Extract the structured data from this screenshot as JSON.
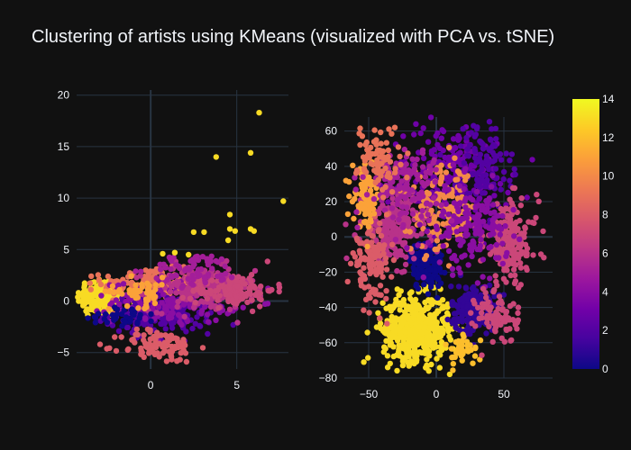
{
  "chart_data": {
    "type": "scatter",
    "title": "Clustering of artists using KMeans (visualized with PCA vs. tSNE)",
    "color": {
      "title": "",
      "range": [
        0,
        14
      ],
      "ticks": [
        "0",
        "2",
        "4",
        "6",
        "8",
        "10",
        "12",
        "14"
      ],
      "scale": [
        "#0d0887",
        "#46039f",
        "#7201a8",
        "#9c179e",
        "#bd3786",
        "#d8576b",
        "#ed7953",
        "#fb9f3a",
        "#fdca26",
        "#f0f921"
      ],
      "position": "right"
    },
    "panels": [
      {
        "name": "pca",
        "xlim": [
          -4.3,
          8.0
        ],
        "ylim": [
          -6.6,
          20.5
        ],
        "xticks": [
          0,
          5
        ],
        "xtick_labels": [
          "0",
          "5"
        ],
        "yticks": [
          -5,
          0,
          5,
          10,
          15,
          20
        ],
        "ytick_labels": [
          "−5",
          "0",
          "5",
          "10",
          "15",
          "20"
        ],
        "zeroline_x": 0,
        "zeroline_y": 0,
        "grid": true,
        "clusters": [
          {
            "c": 13,
            "cx": -2.9,
            "cy": 0.4,
            "sx": 0.7,
            "sy": 1.0,
            "n": 170
          },
          {
            "c": 9,
            "cx": 0.0,
            "cy": 1.7,
            "sx": 1.4,
            "sy": 0.7,
            "n": 150
          },
          {
            "c": 2,
            "cx": 0.6,
            "cy": -1.3,
            "sx": 1.5,
            "sy": 0.9,
            "n": 200
          },
          {
            "c": 4,
            "cx": 1.4,
            "cy": -0.1,
            "sx": 1.8,
            "sy": 1.0,
            "n": 150
          },
          {
            "c": 6,
            "cx": 3.0,
            "cy": 1.2,
            "sx": 1.5,
            "sy": 1.1,
            "n": 170
          },
          {
            "c": 7,
            "cx": 4.8,
            "cy": 1.1,
            "sx": 1.2,
            "sy": 0.8,
            "n": 120
          },
          {
            "c": 8,
            "cx": 0.5,
            "cy": -4.4,
            "sx": 1.1,
            "sy": 0.8,
            "n": 100
          },
          {
            "c": 5,
            "cx": 2.6,
            "cy": 3.0,
            "sx": 1.3,
            "sy": 0.8,
            "n": 70
          },
          {
            "c": 0,
            "cx": -1.6,
            "cy": -1.4,
            "sx": 1.0,
            "sy": 0.5,
            "n": 35
          },
          {
            "c": 11,
            "cx": -0.6,
            "cy": 0.9,
            "sx": 0.9,
            "sy": 0.7,
            "n": 50
          }
        ],
        "outliers": [
          [
            6.3,
            18.3
          ],
          [
            3.8,
            14.0
          ],
          [
            5.8,
            14.4
          ],
          [
            7.7,
            9.7
          ],
          [
            4.6,
            8.4
          ],
          [
            4.6,
            7.0
          ],
          [
            4.9,
            6.8
          ],
          [
            5.8,
            7.0
          ],
          [
            6.0,
            6.8
          ],
          [
            2.5,
            6.7
          ],
          [
            3.1,
            6.7
          ],
          [
            4.5,
            5.9
          ],
          [
            2.2,
            4.5
          ],
          [
            0.7,
            4.6
          ],
          [
            1.4,
            4.7
          ]
        ]
      },
      {
        "name": "tsne",
        "xlim": [
          -68,
          86
        ],
        "ylim": [
          -80,
          68
        ],
        "xticks": [
          -50,
          0,
          50
        ],
        "xtick_labels": [
          "−50",
          "0",
          "50"
        ],
        "yticks": [
          -80,
          -60,
          -40,
          -20,
          0,
          20,
          40,
          60
        ],
        "ytick_labels": [
          "−80",
          "−60",
          "−40",
          "−20",
          "0",
          "20",
          "40",
          "60"
        ],
        "zeroline_x": 0,
        "zeroline_y": 0,
        "grid": true,
        "clusters": [
          {
            "c": 13,
            "cx": -15,
            "cy": -52,
            "sx": 12,
            "sy": 9,
            "n": 520
          },
          {
            "c": 0,
            "cx": -7,
            "cy": -16,
            "sx": 6,
            "sy": 7,
            "n": 150
          },
          {
            "c": 1,
            "cx": 27,
            "cy": -41,
            "sx": 8,
            "sy": 7,
            "n": 160
          },
          {
            "c": 3,
            "cx": 10,
            "cy": 35,
            "sx": 22,
            "sy": 15,
            "n": 220
          },
          {
            "c": 2,
            "cx": 35,
            "cy": 40,
            "sx": 10,
            "sy": 14,
            "n": 120
          },
          {
            "c": 6,
            "cx": -30,
            "cy": 5,
            "sx": 12,
            "sy": 10,
            "n": 220
          },
          {
            "c": 7,
            "cx": 55,
            "cy": -3,
            "sx": 10,
            "sy": 12,
            "n": 180
          },
          {
            "c": 8,
            "cx": -48,
            "cy": -15,
            "sx": 7,
            "sy": 10,
            "n": 120
          },
          {
            "c": 10,
            "cx": 5,
            "cy": 15,
            "sx": 12,
            "sy": 12,
            "n": 160
          },
          {
            "c": 11,
            "cx": -52,
            "cy": 22,
            "sx": 5,
            "sy": 8,
            "n": 80
          },
          {
            "c": 4,
            "cx": 25,
            "cy": 5,
            "sx": 14,
            "sy": 12,
            "n": 170
          },
          {
            "c": 5,
            "cx": -25,
            "cy": 30,
            "sx": 14,
            "sy": 10,
            "n": 130
          },
          {
            "c": 9,
            "cx": -42,
            "cy": 45,
            "sx": 8,
            "sy": 10,
            "n": 80
          },
          {
            "c": 12,
            "cx": 20,
            "cy": -65,
            "sx": 6,
            "sy": 4,
            "n": 40
          },
          {
            "c": 7,
            "cx": 45,
            "cy": -45,
            "sx": 8,
            "sy": 8,
            "n": 80
          }
        ],
        "outliers": []
      }
    ]
  }
}
